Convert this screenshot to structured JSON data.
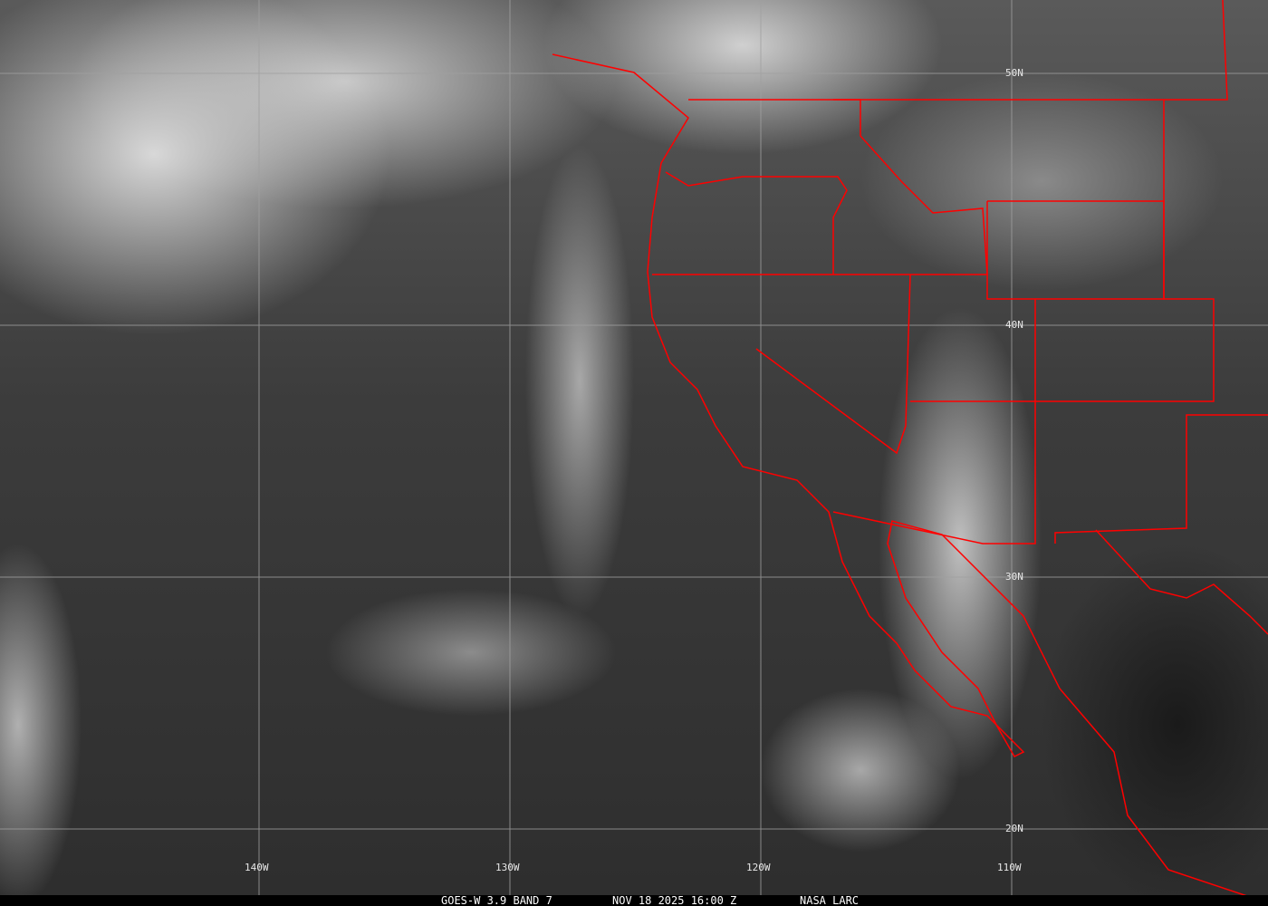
{
  "grid": {
    "longitudes": [
      {
        "label": "140W",
        "value": -140
      },
      {
        "label": "130W",
        "value": -130
      },
      {
        "label": "120W",
        "value": -120
      },
      {
        "label": "110W",
        "value": -110
      }
    ],
    "latitudes": [
      {
        "label": "50N",
        "value": 50
      },
      {
        "label": "40N",
        "value": 40
      },
      {
        "label": "30N",
        "value": 30
      },
      {
        "label": "20N",
        "value": 20
      }
    ]
  },
  "caption": {
    "satellite": "GOES-W 3.9 BAND 7",
    "datetime": "NOV 18 2025 16:00 Z",
    "source": "NASA LARC"
  },
  "colors": {
    "boundaries": "#ff0000",
    "grid": "#a0a0a0",
    "caption_bg": "#000000"
  }
}
